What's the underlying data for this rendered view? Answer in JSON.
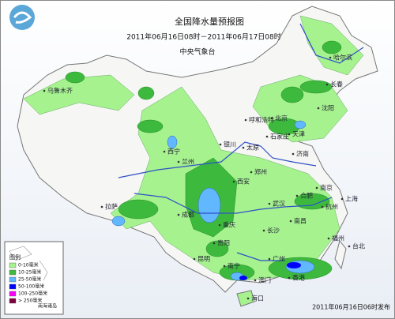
{
  "header": {
    "title": "全国降水量预报图",
    "period": "2011年06月16日08时－2011年06月17日08时",
    "issuer": "中央气象台"
  },
  "legend": {
    "title": "图例",
    "items": [
      {
        "label": "0-10毫米",
        "color": "#a6f28f"
      },
      {
        "label": "10-25毫米",
        "color": "#3dba3d"
      },
      {
        "label": "25-50毫米",
        "color": "#61b8ff"
      },
      {
        "label": "50-100毫米",
        "color": "#0000fe"
      },
      {
        "label": "100-250毫米",
        "color": "#fa00fa"
      },
      {
        "label": "> 250毫米",
        "color": "#800040"
      }
    ]
  },
  "inset_label": "南海诸岛",
  "cities": [
    "乌鲁木齐",
    "哈尔滨",
    "长春",
    "沈阳",
    "北京",
    "天津",
    "呼和浩特",
    "石家庄",
    "银川",
    "太原",
    "济南",
    "西宁",
    "兰州",
    "郑州",
    "西安",
    "合肥",
    "南京",
    "上海",
    "杭州",
    "武汉",
    "拉萨",
    "成都",
    "重庆",
    "长沙",
    "南昌",
    "福州",
    "贵阳",
    "昆明",
    "南宁",
    "广州",
    "香港",
    "澳门",
    "海口",
    "台北"
  ],
  "footer": "2011年06月16日06时发布"
}
